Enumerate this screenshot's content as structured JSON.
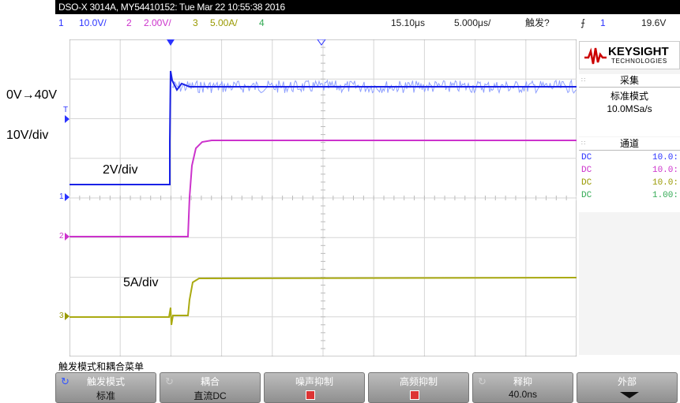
{
  "title": "DSO-X 3014A, MY54410152: Tue Mar 22 10:55:38 2016",
  "status": {
    "ch1_num": "1",
    "ch1_scale": "10.0V/",
    "ch2_num": "2",
    "ch2_scale": "2.00V/",
    "ch3_num": "3",
    "ch3_scale": "5.00A/",
    "ch4_num": "4",
    "time_pos": "15.10μs",
    "time_scale": "5.000μs/",
    "trigger_state": "触发?",
    "trig_ch": "1",
    "trig_level": "19.6V"
  },
  "annotations": {
    "ch1_range": "0V→40V",
    "ch1_div": "10V/div",
    "ch2_div": "2V/div",
    "ch3_div": "5A/div"
  },
  "colors": {
    "ch1": "#2b33ff",
    "ch2": "#cc33cc",
    "ch3": "#999900",
    "ch4": "#33aa55"
  },
  "right_panel": {
    "logo_word": "KEYSIGHT",
    "logo_sub": "TECHNOLOGIES",
    "acq_header": "采集",
    "acq_mode": "标准模式",
    "acq_rate": "10.0MSa/s",
    "chan_header": "通道",
    "channels": [
      {
        "coupling": "DC",
        "value": "10.0:"
      },
      {
        "coupling": "DC",
        "value": "10.0:"
      },
      {
        "coupling": "DC",
        "value": "10.0:"
      },
      {
        "coupling": "DC",
        "value": "1.00:"
      }
    ]
  },
  "menu_title": "触发模式和耦合菜单",
  "softkeys": [
    {
      "label": "触发模式",
      "value": "标准"
    },
    {
      "label": "耦合",
      "value": "直流DC"
    },
    {
      "label": "噪声抑制",
      "value": ""
    },
    {
      "label": "高频抑制",
      "value": ""
    },
    {
      "label": "释抑",
      "value": "40.0ns"
    },
    {
      "label": "外部",
      "value": ""
    }
  ],
  "ground_markers": {
    "ch1": "1",
    "ch2": "2",
    "ch3": "3",
    "trig": "T"
  }
}
